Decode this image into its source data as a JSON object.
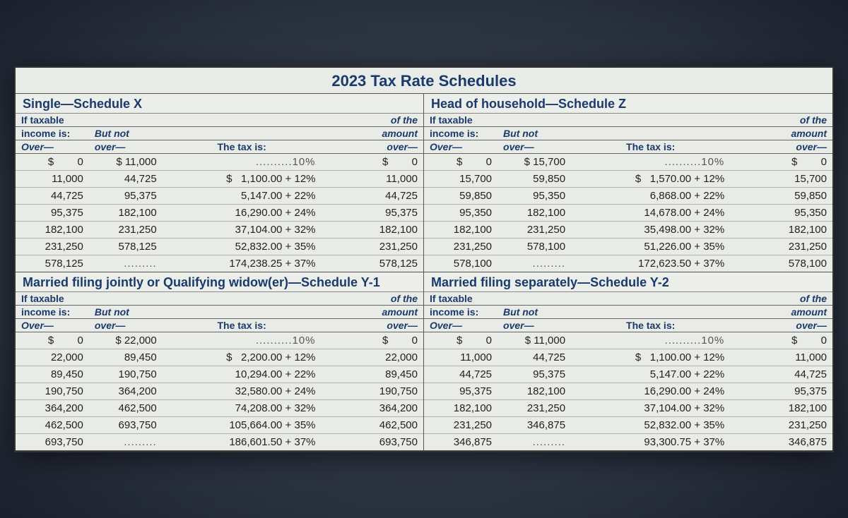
{
  "title": "2023 Tax Rate Schedules",
  "header_labels": {
    "if_taxable": "If taxable",
    "income_is": "income is:",
    "over": "Over—",
    "but_not": "But not",
    "over2": "over—",
    "tax_is": "The tax is:",
    "of_the": "of the",
    "amount": "amount",
    "over3": "over—"
  },
  "schedules": [
    {
      "title": "Single—Schedule X",
      "rows": [
        {
          "over": "$        0",
          "notover": "$ 11,000",
          "tax": "..........10%",
          "amt": "$        0"
        },
        {
          "over": "11,000",
          "notover": "44,725",
          "tax": "$   1,100.00 + 12%",
          "amt": "11,000"
        },
        {
          "over": "44,725",
          "notover": "95,375",
          "tax": "5,147.00 + 22%",
          "amt": "44,725"
        },
        {
          "over": "95,375",
          "notover": "182,100",
          "tax": "16,290.00 + 24%",
          "amt": "95,375"
        },
        {
          "over": "182,100",
          "notover": "231,250",
          "tax": "37,104.00 + 32%",
          "amt": "182,100"
        },
        {
          "over": "231,250",
          "notover": "578,125",
          "tax": "52,832.00 + 35%",
          "amt": "231,250"
        },
        {
          "over": "578,125",
          "notover": ".........",
          "tax": "174,238.25 + 37%",
          "amt": "578,125"
        }
      ]
    },
    {
      "title": "Head of household—Schedule Z",
      "rows": [
        {
          "over": "$        0",
          "notover": "$ 15,700",
          "tax": "..........10%",
          "amt": "$        0"
        },
        {
          "over": "15,700",
          "notover": "59,850",
          "tax": "$   1,570.00 + 12%",
          "amt": "15,700"
        },
        {
          "over": "59,850",
          "notover": "95,350",
          "tax": "6,868.00 + 22%",
          "amt": "59,850"
        },
        {
          "over": "95,350",
          "notover": "182,100",
          "tax": "14,678.00 + 24%",
          "amt": "95,350"
        },
        {
          "over": "182,100",
          "notover": "231,250",
          "tax": "35,498.00 + 32%",
          "amt": "182,100"
        },
        {
          "over": "231,250",
          "notover": "578,100",
          "tax": "51,226.00 + 35%",
          "amt": "231,250"
        },
        {
          "over": "578,100",
          "notover": ".........",
          "tax": "172,623.50 + 37%",
          "amt": "578,100"
        }
      ]
    },
    {
      "title": "Married filing jointly or Qualifying widow(er)—Schedule Y-1",
      "rows": [
        {
          "over": "$        0",
          "notover": "$ 22,000",
          "tax": "..........10%",
          "amt": "$        0"
        },
        {
          "over": "22,000",
          "notover": "89,450",
          "tax": "$   2,200.00 + 12%",
          "amt": "22,000"
        },
        {
          "over": "89,450",
          "notover": "190,750",
          "tax": "10,294.00 + 22%",
          "amt": "89,450"
        },
        {
          "over": "190,750",
          "notover": "364,200",
          "tax": "32,580.00 + 24%",
          "amt": "190,750"
        },
        {
          "over": "364,200",
          "notover": "462,500",
          "tax": "74,208.00 + 32%",
          "amt": "364,200"
        },
        {
          "over": "462,500",
          "notover": "693,750",
          "tax": "105,664.00 + 35%",
          "amt": "462,500"
        },
        {
          "over": "693,750",
          "notover": ".........",
          "tax": "186,601.50 + 37%",
          "amt": "693,750"
        }
      ]
    },
    {
      "title": "Married filing separately—Schedule Y-2",
      "rows": [
        {
          "over": "$        0",
          "notover": "$ 11,000",
          "tax": "..........10%",
          "amt": "$        0"
        },
        {
          "over": "11,000",
          "notover": "44,725",
          "tax": "$   1,100.00 + 12%",
          "amt": "11,000"
        },
        {
          "over": "44,725",
          "notover": "95,375",
          "tax": "5,147.00 + 22%",
          "amt": "44,725"
        },
        {
          "over": "95,375",
          "notover": "182,100",
          "tax": "16,290.00 + 24%",
          "amt": "95,375"
        },
        {
          "over": "182,100",
          "notover": "231,250",
          "tax": "37,104.00 + 32%",
          "amt": "182,100"
        },
        {
          "over": "231,250",
          "notover": "346,875",
          "tax": "52,832.00 + 35%",
          "amt": "231,250"
        },
        {
          "over": "346,875",
          "notover": ".........",
          "tax": "93,300.75 + 37%",
          "amt": "346,875"
        }
      ]
    }
  ],
  "styling": {
    "title_color": "#1a3a6e",
    "paper_bg": "#e8ebe6",
    "border_color": "#555",
    "row_border": "#b0b4ac",
    "font_size_body": 15,
    "font_size_title": 22
  }
}
